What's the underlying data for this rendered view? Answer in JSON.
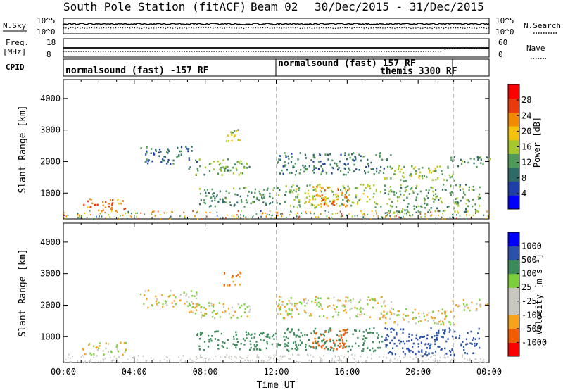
{
  "header": {
    "station": "South Pole Station (fitACF)",
    "beam": "Beam 02",
    "date_range": "30/Dec/2015 - 31/Dec/2015"
  },
  "top_panels": {
    "nsky_label": "N.Sky",
    "nsearch_label": "N.Search",
    "noise_ticks_left": [
      "10^5",
      "10^0"
    ],
    "noise_ticks_right": [
      "10^5",
      "10^0"
    ],
    "freq_label_line1": "Freq.",
    "freq_label_line2": "[MHz]",
    "freq_ticks": [
      "18",
      "8"
    ],
    "nave_label": "Nave",
    "nave_ticks": [
      "60",
      "0"
    ],
    "cpid_label": "CPID",
    "cpid_segments": [
      {
        "text": "normalsound (fast) -157 RF",
        "start_h": 0,
        "end_h": 12
      },
      {
        "text": "normalsound (fast) 157 RF",
        "start_h": 12,
        "end_h": 22
      },
      {
        "text": "themis 3300 RF",
        "start_h": 12,
        "end_h": 22
      }
    ],
    "cpid_dividers_h": [
      12,
      22
    ]
  },
  "chart_data": [
    {
      "type": "heatmap",
      "parameter": "Power",
      "ylabel": "Slant Range [km]",
      "y_ticks": [
        1000,
        2000,
        3000,
        4000
      ],
      "ylim": [
        180,
        4600
      ],
      "xlim_hours": [
        0,
        24
      ],
      "colorbar_label": "Power [dB]",
      "colorbar_ticks": [
        "4",
        "8",
        "12",
        "16",
        "20",
        "24",
        "28"
      ],
      "colorbar_range": [
        0,
        30
      ],
      "colors": [
        "#0000ff",
        "#1e3fa8",
        "#2e6a66",
        "#4f9a5a",
        "#a6c82c",
        "#f4c20c",
        "#f28a00",
        "#e83a0c",
        "#ff0000"
      ],
      "echo_regions": [
        {
          "t": [
            0.9,
            3.5
          ],
          "r": [
            450,
            850
          ],
          "value": 24
        },
        {
          "t": [
            4.3,
            7.5
          ],
          "r": [
            1950,
            2500
          ],
          "value": 7
        },
        {
          "t": [
            7.0,
            10.5
          ],
          "r": [
            1600,
            2100
          ],
          "value": 12
        },
        {
          "t": [
            9.0,
            10.0
          ],
          "r": [
            2650,
            3100
          ],
          "value": 16
        },
        {
          "t": [
            7.5,
            12.5
          ],
          "r": [
            600,
            1200
          ],
          "value": 10
        },
        {
          "t": [
            12.0,
            18.5
          ],
          "r": [
            1600,
            2300
          ],
          "value": 8
        },
        {
          "t": [
            12.5,
            18.0
          ],
          "r": [
            550,
            1300
          ],
          "value": 14
        },
        {
          "t": [
            14.0,
            16.0
          ],
          "r": [
            600,
            1250
          ],
          "value": 22
        },
        {
          "t": [
            18.0,
            22.0
          ],
          "r": [
            1400,
            1900
          ],
          "value": 14
        },
        {
          "t": [
            18.0,
            23.5
          ],
          "r": [
            400,
            1300
          ],
          "value": 12
        },
        {
          "t": [
            21.8,
            24.0
          ],
          "r": [
            1850,
            2200
          ],
          "value": 10
        }
      ]
    },
    {
      "type": "heatmap",
      "parameter": "Velocity",
      "ylabel": "Slant Range [km]",
      "xlabel": "Time UT",
      "x_ticks": [
        "00:00",
        "04:00",
        "08:00",
        "12:00",
        "16:00",
        "20:00",
        "00:00"
      ],
      "y_ticks": [
        1000,
        2000,
        3000,
        4000
      ],
      "ylim": [
        180,
        4600
      ],
      "xlim_hours": [
        0,
        24
      ],
      "colorbar_label": "Velocity [m s⁻¹]",
      "colorbar_ticks": [
        "1000",
        "500",
        "100",
        "25",
        "-25",
        "-100",
        "-500",
        "-1000"
      ],
      "colors": [
        "#ff0000",
        "#f25c00",
        "#f7a21c",
        "#c8c8c0",
        "#c8c8c0",
        "#7ccf3a",
        "#3a8a5a",
        "#2a52a8",
        "#0000ff"
      ],
      "echo_regions": [
        {
          "t": [
            0.9,
            3.5
          ],
          "r": [
            450,
            850
          ],
          "value": 0
        },
        {
          "t": [
            4.3,
            7.5
          ],
          "r": [
            1950,
            2500
          ],
          "value": 0
        },
        {
          "t": [
            7.0,
            10.5
          ],
          "r": [
            1600,
            2100
          ],
          "value": 0
        },
        {
          "t": [
            9.0,
            10.0
          ],
          "r": [
            2650,
            3100
          ],
          "value": -100
        },
        {
          "t": [
            7.5,
            12.5
          ],
          "r": [
            600,
            1200
          ],
          "value": 200
        },
        {
          "t": [
            12.0,
            18.5
          ],
          "r": [
            1600,
            2300
          ],
          "value": 0
        },
        {
          "t": [
            12.5,
            18.0
          ],
          "r": [
            550,
            1300
          ],
          "value": 300
        },
        {
          "t": [
            14.0,
            16.0
          ],
          "r": [
            600,
            1250
          ],
          "value": -300
        },
        {
          "t": [
            18.0,
            22.0
          ],
          "r": [
            1400,
            1900
          ],
          "value": 0
        },
        {
          "t": [
            18.0,
            23.5
          ],
          "r": [
            400,
            1300
          ],
          "value": 700
        },
        {
          "t": [
            21.8,
            24.0
          ],
          "r": [
            1850,
            2200
          ],
          "value": 0
        }
      ]
    }
  ]
}
